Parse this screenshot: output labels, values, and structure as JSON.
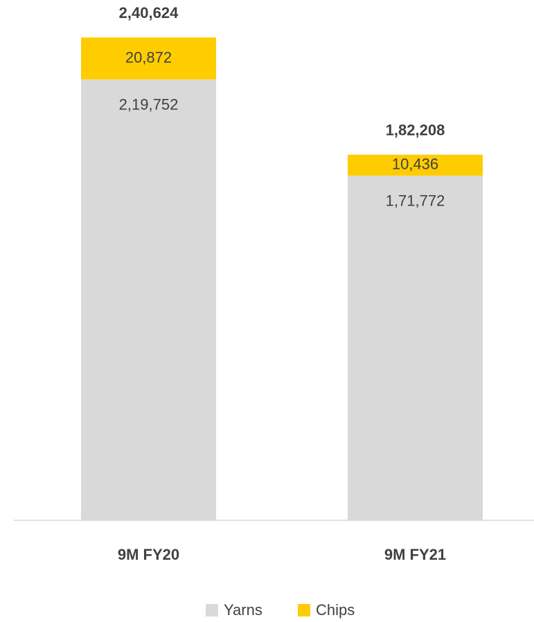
{
  "chart_data": {
    "type": "stacked_bar",
    "categories": [
      "9M FY20",
      "9M FY21"
    ],
    "series": [
      {
        "name": "Yarns",
        "color": "#d9d9d9",
        "values": [
          219752,
          171772
        ],
        "value_labels": [
          "2,19,752",
          "1,71,772"
        ]
      },
      {
        "name": "Chips",
        "color": "#ffcc00",
        "values": [
          20872,
          10436
        ],
        "value_labels": [
          "20,872",
          "10,436"
        ]
      }
    ],
    "total_labels": [
      "2,40,624",
      "1,82,208"
    ],
    "ylim": [
      0,
      250000
    ],
    "legend": "bottom"
  }
}
